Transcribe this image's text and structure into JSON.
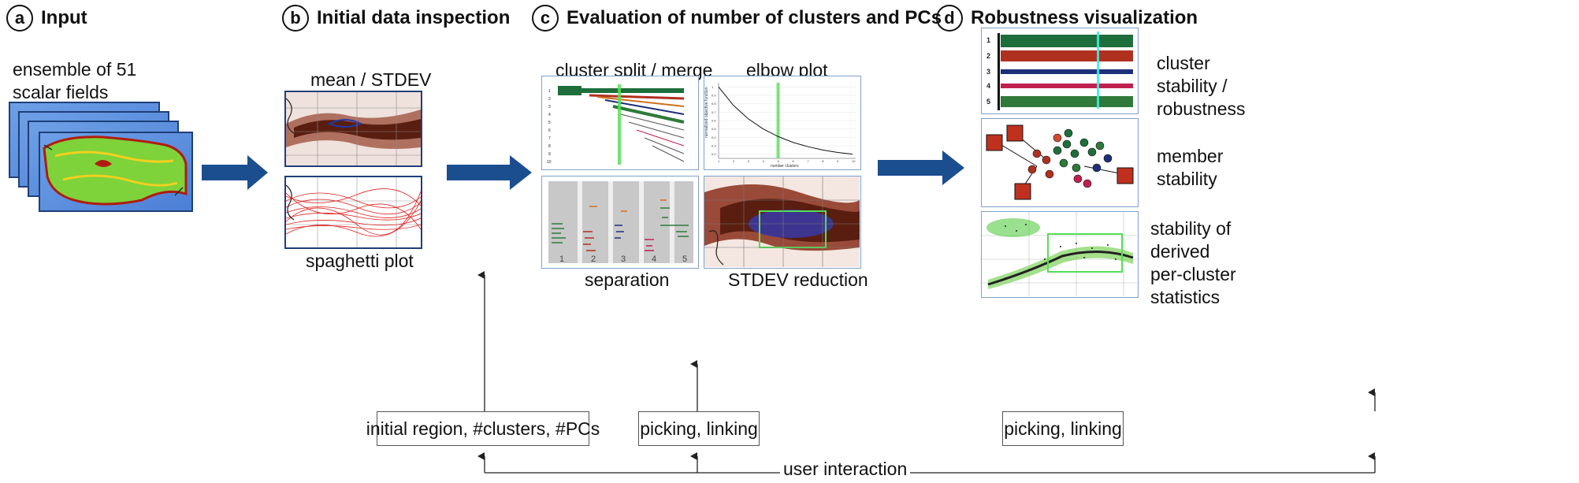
{
  "colors": {
    "arrow_blue": "#1b4e8f",
    "panel_border_light": "#7ea2cc",
    "panel_border_dark": "#1f3f78",
    "highlight_green": "#55e055",
    "cluster_colors": [
      "#1e6e3b",
      "#b0301f",
      "#1e2f7a",
      "#c02050",
      "#2f7a3a"
    ]
  },
  "steps": {
    "a": {
      "badge": "a",
      "title": "Input"
    },
    "b": {
      "badge": "b",
      "title": "Initial data inspection"
    },
    "c": {
      "badge": "c",
      "title": "Evaluation of number of clusters and PCs"
    },
    "d": {
      "badge": "d",
      "title": "Robustness visualization"
    }
  },
  "input": {
    "caption_line1": "ensemble of 51",
    "caption_line2": "scalar fields"
  },
  "inspection": {
    "top_label": "mean / STDEV",
    "bottom_label": "spaghetti plot"
  },
  "evaluation": {
    "split_merge_label": "cluster split / merge",
    "elbow_label": "elbow plot",
    "separation_label": "separation",
    "stdev_label": "STDEV reduction",
    "split_row_labels": [
      "1",
      "2",
      "3",
      "4",
      "5",
      "6",
      "7",
      "8",
      "9",
      "10"
    ],
    "separation_ticks": [
      "1",
      "2",
      "3",
      "4",
      "5"
    ]
  },
  "elbow_chart": {
    "y_axis_label": "normalized objective function",
    "x_axis_label": "number clusters",
    "y_ticks": [
      "1",
      "0.9",
      "0.8",
      "0.7",
      "0.6",
      "0.5",
      "0.4",
      "0.3",
      "0.2"
    ],
    "x_ticks": [
      "1",
      "2",
      "3",
      "4",
      "5",
      "6",
      "7",
      "8",
      "9",
      "10"
    ],
    "points": [
      [
        1,
        1.0
      ],
      [
        2,
        0.78
      ],
      [
        3,
        0.62
      ],
      [
        4,
        0.5
      ],
      [
        5,
        0.41
      ],
      [
        6,
        0.34
      ],
      [
        7,
        0.29
      ],
      [
        8,
        0.25
      ],
      [
        9,
        0.22
      ],
      [
        10,
        0.2
      ]
    ],
    "highlight_x": 5
  },
  "robustness": {
    "row_labels": [
      "1",
      "2",
      "3",
      "4",
      "5"
    ],
    "cluster_stability_l1": "cluster",
    "cluster_stability_l2": "stability /",
    "cluster_stability_l3": "robustness",
    "member_stability_l1": "member",
    "member_stability_l2": "stability",
    "derived_l1": "stability of",
    "derived_l2": "derived",
    "derived_l3": "per-cluster",
    "derived_l4": "statistics"
  },
  "interaction": {
    "initial_region": "initial region, #clusters, #PCs",
    "picking_linking_c": "picking, linking",
    "picking_linking_d": "picking, linking",
    "user_interaction": "user interaction"
  }
}
